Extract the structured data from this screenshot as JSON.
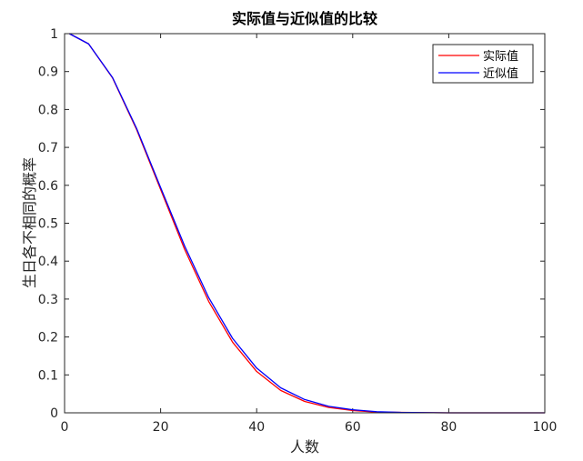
{
  "chart_data": {
    "type": "line",
    "title": "实际值与近似值的比较",
    "xlabel": "人数",
    "ylabel": "生日各不相同的概率",
    "xlim": [
      0,
      100
    ],
    "ylim": [
      0,
      1
    ],
    "xticks": [
      "0",
      "20",
      "40",
      "60",
      "80",
      "100"
    ],
    "yticks": [
      "0",
      "0.1",
      "0.2",
      "0.3",
      "0.4",
      "0.5",
      "0.6",
      "0.7",
      "0.8",
      "0.9",
      "1"
    ],
    "grid": false,
    "legend_position": "top-right",
    "x": [
      1,
      5,
      10,
      15,
      20,
      25,
      30,
      35,
      40,
      45,
      50,
      55,
      60,
      65,
      70,
      80,
      90,
      100
    ],
    "series": [
      {
        "name": "实际值",
        "color": "#ff0000",
        "values": [
          1.0,
          0.973,
          0.883,
          0.747,
          0.589,
          0.431,
          0.294,
          0.186,
          0.109,
          0.059,
          0.03,
          0.014,
          0.006,
          0.002,
          0.001,
          0.0,
          0.0,
          0.0
        ]
      },
      {
        "name": "近似值",
        "color": "#0000ff",
        "values": [
          1.0,
          0.973,
          0.884,
          0.75,
          0.594,
          0.44,
          0.304,
          0.196,
          0.118,
          0.066,
          0.035,
          0.017,
          0.008,
          0.003,
          0.001,
          0.0,
          0.0,
          0.0
        ]
      }
    ]
  }
}
